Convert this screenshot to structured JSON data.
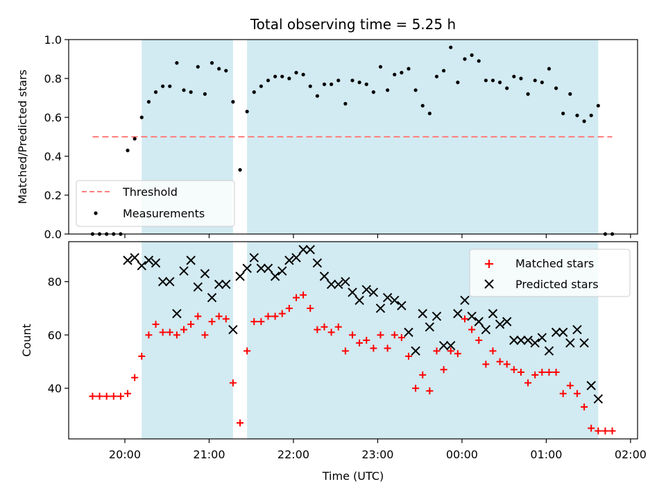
{
  "chart_data": [
    {
      "type": "scatter",
      "title": "Total observing time = 5.25 h",
      "ylabel": "Matched/Predicted stars",
      "xlabel": "",
      "ylim": [
        0,
        1.0
      ],
      "yticks": [
        "0.0",
        "0.2",
        "0.4",
        "0.6",
        "0.8",
        "1.0"
      ],
      "legend": {
        "position": "lower-left",
        "entries": [
          "Threshold",
          "Measurements"
        ]
      },
      "threshold": {
        "name": "Threshold",
        "value": 0.5,
        "x_start": "19:37",
        "x_end": "01:47",
        "color": "#ff7f7f",
        "style": "dashed"
      },
      "shaded_intervals": [
        [
          "20:12",
          "21:17"
        ],
        [
          "21:27",
          "01:37"
        ]
      ],
      "shade_color": "#add8e6",
      "series": [
        {
          "name": "Measurements",
          "marker": "dot",
          "color": "#000000",
          "x": [
            "19:37",
            "19:42",
            "19:47",
            "19:52",
            "19:57",
            "20:02",
            "20:07",
            "20:12",
            "20:17",
            "20:22",
            "20:27",
            "20:32",
            "20:37",
            "20:42",
            "20:47",
            "20:52",
            "20:57",
            "21:02",
            "21:07",
            "21:12",
            "21:17",
            "21:22",
            "21:27",
            "21:32",
            "21:37",
            "21:42",
            "21:47",
            "21:52",
            "21:57",
            "22:02",
            "22:07",
            "22:12",
            "22:17",
            "22:22",
            "22:27",
            "22:32",
            "22:37",
            "22:42",
            "22:47",
            "22:52",
            "22:57",
            "23:02",
            "23:07",
            "23:12",
            "23:17",
            "23:22",
            "23:27",
            "23:32",
            "23:37",
            "23:42",
            "23:47",
            "23:52",
            "23:57",
            "00:02",
            "00:07",
            "00:12",
            "00:17",
            "00:22",
            "00:27",
            "00:32",
            "00:37",
            "00:42",
            "00:47",
            "00:52",
            "00:57",
            "01:02",
            "01:07",
            "01:12",
            "01:17",
            "01:22",
            "01:27",
            "01:32",
            "01:37",
            "01:42",
            "01:47"
          ],
          "y": [
            0.0,
            0.0,
            0.0,
            0.0,
            0.0,
            0.43,
            0.49,
            0.6,
            0.68,
            0.73,
            0.76,
            0.76,
            0.88,
            0.74,
            0.73,
            0.86,
            0.72,
            0.88,
            0.85,
            0.84,
            0.68,
            0.33,
            0.63,
            0.73,
            0.76,
            0.79,
            0.81,
            0.81,
            0.8,
            0.83,
            0.82,
            0.76,
            0.71,
            0.77,
            0.77,
            0.79,
            0.67,
            0.79,
            0.78,
            0.77,
            0.73,
            0.86,
            0.74,
            0.82,
            0.83,
            0.85,
            0.74,
            0.66,
            0.62,
            0.81,
            0.84,
            0.96,
            0.78,
            0.9,
            0.92,
            0.89,
            0.79,
            0.79,
            0.78,
            0.75,
            0.81,
            0.8,
            0.72,
            0.79,
            0.78,
            0.85,
            0.75,
            0.62,
            0.72,
            0.61,
            0.58,
            0.61,
            0.66,
            0.0,
            0.0
          ]
        }
      ]
    },
    {
      "type": "scatter",
      "title": "",
      "xlabel": "Time (UTC)",
      "ylabel": "Count",
      "ylim": [
        21,
        95
      ],
      "yticks": [
        "40",
        "60",
        "80"
      ],
      "xlim": [
        "19:20",
        "02:05"
      ],
      "xticks": [
        "20:00",
        "21:00",
        "22:00",
        "23:00",
        "00:00",
        "01:00",
        "02:00"
      ],
      "legend": {
        "position": "top-right",
        "entries": [
          "Matched stars",
          "Predicted stars"
        ]
      },
      "shaded_intervals": [
        [
          "20:12",
          "21:17"
        ],
        [
          "21:27",
          "01:37"
        ]
      ],
      "shade_color": "#add8e6",
      "series": [
        {
          "name": "Matched stars",
          "marker": "plus",
          "color": "#ff0000",
          "x": [
            "19:37",
            "19:42",
            "19:47",
            "19:52",
            "19:57",
            "20:02",
            "20:07",
            "20:12",
            "20:17",
            "20:22",
            "20:27",
            "20:32",
            "20:37",
            "20:42",
            "20:47",
            "20:52",
            "20:57",
            "21:02",
            "21:07",
            "21:12",
            "21:17",
            "21:22",
            "21:27",
            "21:32",
            "21:37",
            "21:42",
            "21:47",
            "21:52",
            "21:57",
            "22:02",
            "22:07",
            "22:12",
            "22:17",
            "22:22",
            "22:27",
            "22:32",
            "22:37",
            "22:42",
            "22:47",
            "22:52",
            "22:57",
            "23:02",
            "23:07",
            "23:12",
            "23:17",
            "23:22",
            "23:27",
            "23:32",
            "23:37",
            "23:42",
            "23:47",
            "23:52",
            "23:57",
            "00:02",
            "00:07",
            "00:12",
            "00:17",
            "00:22",
            "00:27",
            "00:32",
            "00:37",
            "00:42",
            "00:47",
            "00:52",
            "00:57",
            "01:02",
            "01:07",
            "01:12",
            "01:17",
            "01:22",
            "01:27",
            "01:32",
            "01:37",
            "01:42",
            "01:47"
          ],
          "y": [
            37,
            37,
            37,
            37,
            37,
            38,
            44,
            52,
            60,
            64,
            61,
            61,
            60,
            62,
            64,
            67,
            60,
            65,
            67,
            66,
            42,
            27,
            54,
            65,
            65,
            67,
            67,
            68,
            70,
            74,
            75,
            70,
            62,
            63,
            61,
            63,
            54,
            60,
            57,
            58,
            55,
            60,
            55,
            60,
            59,
            52,
            40,
            45,
            39,
            54,
            47,
            54,
            53,
            66,
            62,
            58,
            49,
            54,
            50,
            49,
            47,
            46,
            42,
            45,
            46,
            46,
            46,
            38,
            41,
            38,
            33,
            25,
            24,
            24,
            24
          ]
        },
        {
          "name": "Predicted stars",
          "marker": "x",
          "color": "#000000",
          "x": [
            "20:02",
            "20:07",
            "20:12",
            "20:17",
            "20:22",
            "20:27",
            "20:32",
            "20:37",
            "20:42",
            "20:47",
            "20:52",
            "20:57",
            "21:02",
            "21:07",
            "21:12",
            "21:17",
            "21:22",
            "21:27",
            "21:32",
            "21:37",
            "21:42",
            "21:47",
            "21:52",
            "21:57",
            "22:02",
            "22:07",
            "22:12",
            "22:17",
            "22:22",
            "22:27",
            "22:32",
            "22:37",
            "22:42",
            "22:47",
            "22:52",
            "22:57",
            "23:02",
            "23:07",
            "23:12",
            "23:17",
            "23:22",
            "23:27",
            "23:32",
            "23:37",
            "23:42",
            "23:47",
            "23:52",
            "23:57",
            "00:02",
            "00:07",
            "00:12",
            "00:17",
            "00:22",
            "00:27",
            "00:32",
            "00:37",
            "00:42",
            "00:47",
            "00:52",
            "00:57",
            "01:02",
            "01:07",
            "01:12",
            "01:17",
            "01:22",
            "01:27",
            "01:32",
            "01:37"
          ],
          "y": [
            88,
            89,
            86,
            88,
            87,
            80,
            80,
            68,
            84,
            88,
            78,
            83,
            74,
            79,
            79,
            62,
            82,
            85,
            89,
            85,
            85,
            82,
            84,
            88,
            89,
            92,
            92,
            87,
            82,
            79,
            79,
            80,
            76,
            73,
            77,
            76,
            70,
            74,
            73,
            71,
            61,
            54,
            68,
            63,
            67,
            56,
            56,
            68,
            73,
            67,
            65,
            62,
            68,
            64,
            65,
            58,
            58,
            58,
            57,
            59,
            54,
            61,
            61,
            57,
            62,
            57,
            41,
            36
          ]
        }
      ]
    }
  ]
}
